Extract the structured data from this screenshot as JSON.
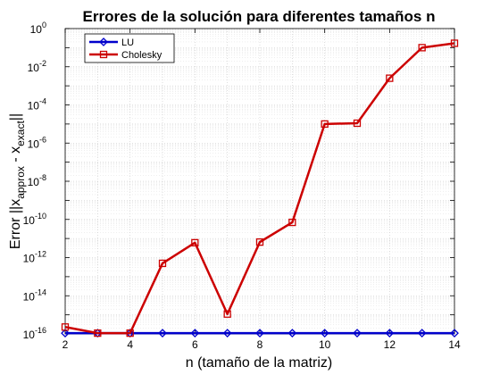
{
  "chart_data": {
    "type": "line",
    "title": "Errores de la solución para diferentes tamaños n",
    "xlabel": "n (tamaño de la matriz)",
    "ylabel": {
      "prefix": "Error ||x",
      "sub1": "approx",
      "mid": " - x",
      "sub2": "exact",
      "suffix": "||"
    },
    "x": [
      2,
      3,
      4,
      5,
      6,
      7,
      8,
      9,
      10,
      11,
      12,
      13,
      14
    ],
    "xlim": [
      2,
      14
    ],
    "xticks": [
      2,
      4,
      6,
      8,
      10,
      12,
      14
    ],
    "ylim_exponent": [
      -16,
      0
    ],
    "yscale": "log",
    "yticks_exponent": [
      -16,
      -14,
      -12,
      -10,
      -8,
      -6,
      -4,
      -2,
      0
    ],
    "grid": true,
    "legend_position": "top-left",
    "series": [
      {
        "name": "LU",
        "color": "#0000cc",
        "marker": "diamond",
        "values": [
          1.1e-16,
          1.1e-16,
          1.1e-16,
          1.1e-16,
          1.1e-16,
          1.1e-16,
          1.1e-16,
          1.1e-16,
          1.1e-16,
          1.1e-16,
          1.1e-16,
          1.1e-16,
          1.1e-16
        ]
      },
      {
        "name": "Cholesky",
        "color": "#cc0000",
        "marker": "square",
        "values": [
          2.3e-16,
          1.1e-16,
          1.1e-16,
          5e-13,
          6e-12,
          1.1e-15,
          6.5e-12,
          7e-11,
          1e-05,
          1.1e-05,
          0.0025,
          0.1,
          0.17
        ]
      }
    ]
  }
}
